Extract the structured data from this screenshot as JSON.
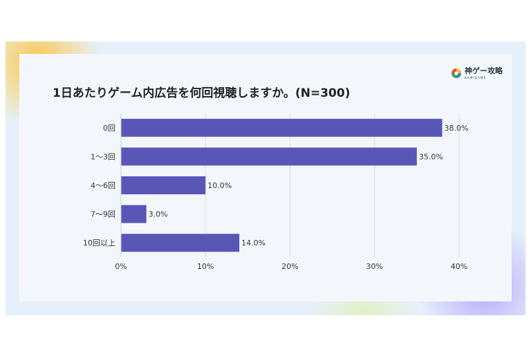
{
  "title": "1日あたりゲーム内広告を何回視聴しますか。(N=300)",
  "logo": {
    "text": "神ゲー攻略",
    "sub": "KAMIGAME"
  },
  "chart_data": {
    "type": "bar",
    "orientation": "horizontal",
    "categories": [
      "0回",
      "1〜3回",
      "4〜6回",
      "7〜9回",
      "10回以上"
    ],
    "values": [
      38.0,
      35.0,
      10.0,
      3.0,
      14.0
    ],
    "value_labels": [
      "38.0%",
      "35.0%",
      "10.0%",
      "3.0%",
      "14.0%"
    ],
    "xticks": [
      "0%",
      "10%",
      "20%",
      "30%",
      "40%"
    ],
    "xlim": [
      0,
      40
    ],
    "grid": true,
    "bar_color": "#5a56b8"
  }
}
